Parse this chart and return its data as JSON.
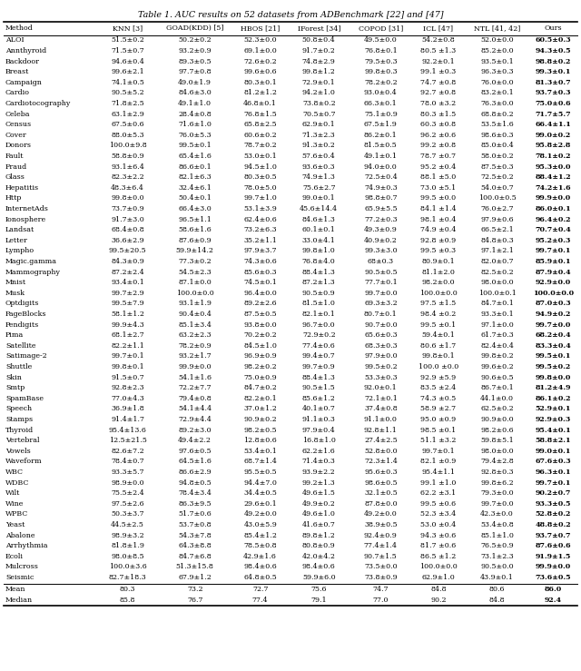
{
  "title": "Table 1. AUC results on 52 datasets from ADBenchmark [22] and [47]",
  "columns": [
    "Method",
    "KNN [3]",
    "GOAD(KDD) [5]",
    "HBOS [21]",
    "IForest [34]",
    "COPOD [31]",
    "ICL [47]",
    "NTL [41, 42]",
    "Ours"
  ],
  "rows": [
    [
      "ALOI",
      "51.5±0.2",
      "50.2±0.2",
      "52.3±0.0",
      "50.8±0.4",
      "49.5±0.0",
      "54.2±0.8",
      "52.0±0.0",
      "60.5±0.3"
    ],
    [
      "Annthyroid",
      "71.5±0.7",
      "93.2±0.9",
      "69.1±0.0",
      "91.7±0.2",
      "76.8±0.1",
      "80.5 ±1.3",
      "85.2±0.0",
      "94.3±0.5"
    ],
    [
      "Backdoor",
      "94.6±0.4",
      "89.3±0.5",
      "72.6±0.2",
      "74.8±2.9",
      "79.5±0.3",
      "92.2±0.1",
      "93.5±0.1",
      "98.8±0.2"
    ],
    [
      "Breast",
      "99.6±2.1",
      "97.7±0.8",
      "99.6±0.6",
      "99.8±1.2",
      "99.8±0.3",
      "99.1 ±0.3",
      "96.3±0.3",
      "99.3±0.1"
    ],
    [
      "Campaign",
      "74.1±0.5",
      "49.0±1.9",
      "80.3±0.1",
      "72.9±0.1",
      "78.2±0.2",
      "74.7 ±0.8",
      "76.0±0.0",
      "81.3±0.7"
    ],
    [
      "Cardio",
      "90.5±5.2",
      "84.6±3.0",
      "81.2±1.2",
      "94.2±1.0",
      "93.0±0.4",
      "92.7 ±0.8",
      "83.2±0.1",
      "93.7±0.3"
    ],
    [
      "Cardiotocography",
      "71.8±2.5",
      "49.1±1.0",
      "46.8±0.1",
      "73.8±0.2",
      "66.3±0.1",
      "78.0 ±3.2",
      "76.3±0.0",
      "75.0±0.6"
    ],
    [
      "Celeba",
      "63.1±2.9",
      "28.4±0.8",
      "76.8±1.5",
      "70.5±0.7",
      "75.1±0.9",
      "80.3 ±1.5",
      "68.8±0.2",
      "71.7±5.7"
    ],
    [
      "Census",
      "67.5±0.6",
      "71.6±1.0",
      "65.8±2.5",
      "62.9±0.1",
      "67.5±1.9",
      "60.3 ±0.8",
      "53.5±1.6",
      "66.4±1.1"
    ],
    [
      "Cover",
      "88.0±5.3",
      "76.0±5.3",
      "60.6±0.2",
      "71.3±2.3",
      "86.2±0.1",
      "96.2 ±0.6",
      "98.6±0.3",
      "99.0±0.2"
    ],
    [
      "Donors",
      "100.0±9.8",
      "99.5±0.1",
      "78.7±0.2",
      "91.3±0.2",
      "81.5±0.5",
      "99.2 ±0.8",
      "85.0±0.4",
      "95.8±2.8"
    ],
    [
      "Fault",
      "58.8±0.9",
      "65.4±1.6",
      "53.0±0.1",
      "57.6±0.4",
      "49.1±0.1",
      "78.7 ±0.7",
      "58.0±0.2",
      "78.1±0.2"
    ],
    [
      "Fraud",
      "93.1±6.4",
      "86.6±0.1",
      "94.5±1.0",
      "93.6±0.3",
      "94.0±0.0",
      "95.2 ±0.4",
      "87.5±0.3",
      "95.3±0.0"
    ],
    [
      "Glass",
      "82.3±2.2",
      "82.1±6.3",
      "80.3±0.5",
      "74.9±1.3",
      "72.5±0.4",
      "88.1 ±5.0",
      "72.5±0.2",
      "88.4±1.2"
    ],
    [
      "Hepatitis",
      "48.3±6.4",
      "32.4±6.1",
      "78.0±5.0",
      "75.6±2.7",
      "74.9±0.3",
      "73.0 ±5.1",
      "54.0±0.7",
      "74.2±1.6"
    ],
    [
      "Http",
      "99.8±0.0",
      "50.4±0.1",
      "99.7±1.0",
      "99.0±0.1",
      "98.8±0.7",
      "99.5 ±0.0",
      "100.0±0.5",
      "99.9±0.0"
    ],
    [
      "InternetAds",
      "73.7±0.9",
      "66.4±3.0",
      "53.1±3.9",
      "45.6±14.4",
      "65.9±5.5",
      "84.1 ±1.4",
      "76.0±2.7",
      "86.0±0.1"
    ],
    [
      "Ionosphere",
      "91.7±3.0",
      "96.5±1.1",
      "62.4±0.6",
      "84.6±1.3",
      "77.2±0.3",
      "98.1 ±0.4",
      "97.9±0.6",
      "96.4±0.2"
    ],
    [
      "Landsat",
      "68.4±0.8",
      "58.6±1.6",
      "73.2±6.3",
      "60.1±0.1",
      "49.3±0.9",
      "74.9 ±0.4",
      "66.5±2.1",
      "70.7±0.4"
    ],
    [
      "Letter",
      "36.6±2.9",
      "87.6±0.9",
      "35.2±1.1",
      "33.0±4.1",
      "40.9±0.2",
      "92.8 ±0.9",
      "84.8±0.3",
      "95.2±0.3"
    ],
    [
      "Lympho",
      "99.5±20.5",
      "59.9±14.2",
      "97.9±3.7",
      "99.8±1.0",
      "99.3±3.0",
      "99.5 ±0.3",
      "97.1±2.1",
      "99.7±0.1"
    ],
    [
      "Magic.gamma",
      "84.3±0.9",
      "77.3±0.2",
      "74.3±0.6",
      "76.8±4.0",
      "68±0.3",
      "80.9±0.1",
      "82.0±0.7",
      "85.9±0.1"
    ],
    [
      "Mammography",
      "87.2±2.4",
      "54.5±2.3",
      "85.6±0.3",
      "88.4±1.3",
      "90.5±0.5",
      "81.1±2.0",
      "82.5±0.2",
      "87.9±0.4"
    ],
    [
      "Mnist",
      "93.4±0.1",
      "87.1±0.0",
      "74.5±0.1",
      "87.2±1.3",
      "77.7±0.1",
      "98.2±0.0",
      "98.0±0.0",
      "92.9±0.0"
    ],
    [
      "Musk",
      "99.7±2.9",
      "100.0±0.0",
      "96.4±0.0",
      "90.5±0.9",
      "99.7±0.0",
      "100.0±0.0",
      "100.0±0.1",
      "100.0±0.0"
    ],
    [
      "Optdigits",
      "99.5±7.9",
      "93.1±1.9",
      "89.2±2.6",
      "81.5±1.0",
      "69.3±3.2",
      "97.5 ±1.5",
      "84.7±0.1",
      "87.0±0.3"
    ],
    [
      "PageBlocks",
      "58.1±1.2",
      "90.4±0.4",
      "87.5±0.5",
      "82.1±0.1",
      "80.7±0.1",
      "98.4 ±0.2",
      "93.3±0.1",
      "94.9±0.2"
    ],
    [
      "Pendigits",
      "99.9±4.3",
      "85.1±3.4",
      "93.8±0.0",
      "96.7±0.0",
      "90.7±0.0",
      "99.5 ±0.1",
      "97.1±0.0",
      "99.7±0.0"
    ],
    [
      "Pima",
      "68.1±2.7",
      "63.2±2.3",
      "70.2±0.2",
      "72.9±0.2",
      "65.6±0.3",
      "59.4±0.1",
      "61.7±0.3",
      "68.2±0.4"
    ],
    [
      "Satellite",
      "82.2±1.1",
      "78.2±0.9",
      "84.5±1.0",
      "77.4±0.6",
      "68.3±0.3",
      "80.6 ±1.7",
      "82.4±0.4",
      "83.3±0.4"
    ],
    [
      "Satimage-2",
      "99.7±0.1",
      "93.2±1.7",
      "96.9±0.9",
      "99.4±0.7",
      "97.9±0.0",
      "99.8±0.1",
      "99.8±0.2",
      "99.5±0.1"
    ],
    [
      "Shuttle",
      "99.8±0.1",
      "99.9±0.0",
      "98.2±0.2",
      "99.7±0.9",
      "99.5±0.2",
      "100.0 ±0.0",
      "99.6±0.2",
      "99.5±0.2"
    ],
    [
      "Skin",
      "91.5±0.7",
      "54.1±1.6",
      "75.0±0.9",
      "88.4±1.3",
      "53.3±0.3",
      "92.9 ±5.9",
      "90.6±0.5",
      "99.8±0.0"
    ],
    [
      "Smtp",
      "92.8±2.3",
      "72.2±7.7",
      "84.7±0.2",
      "90.5±1.5",
      "92.0±0.1",
      "83.5 ±2.4",
      "86.7±0.1",
      "81.2±4.9"
    ],
    [
      "SpamBase",
      "77.0±4.3",
      "79.4±0.8",
      "82.2±0.1",
      "85.6±1.2",
      "72.1±0.1",
      "74.3 ±0.5",
      "44.1±0.0",
      "86.1±0.2"
    ],
    [
      "Speech",
      "36.9±1.8",
      "54.1±4.4",
      "37.0±1.2",
      "40.1±0.7",
      "37.4±0.8",
      "58.9 ±2.7",
      "62.5±0.2",
      "52.9±0.1"
    ],
    [
      "Stamps",
      "91.4±1.7",
      "72.9±4.4",
      "90.9±0.2",
      "91.1±0.3",
      "91.1±0.0",
      "95.0 ±0.9",
      "90.9±0.0",
      "92.9±0.3"
    ],
    [
      "Thyroid",
      "95.4±13.6",
      "89.2±3.0",
      "98.2±0.5",
      "97.9±0.4",
      "92.8±1.1",
      "98.5 ±0.1",
      "98.2±0.6",
      "95.4±0.1"
    ],
    [
      "Vertebral",
      "12.5±21.5",
      "49.4±2.2",
      "12.8±0.6",
      "16.8±1.0",
      "27.4±2.5",
      "51.1 ±3.2",
      "59.8±5.1",
      "58.8±2.1"
    ],
    [
      "Vowels",
      "82.6±7.2",
      "97.6±0.5",
      "53.4±0.1",
      "62.2±1.6",
      "52.8±0.0",
      "99.7±0.1",
      "98.0±0.0",
      "99.0±0.1"
    ],
    [
      "Waveform",
      "78.4±0.7",
      "64.5±1.6",
      "68.7±1.4",
      "71.4±0.3",
      "72.3±1.4",
      "82.1 ±0.9",
      "79.4±2.8",
      "67.6±0.3"
    ],
    [
      "WBC",
      "93.3±5.7",
      "86.6±2.9",
      "95.5±0.5",
      "93.9±2.2",
      "95.6±0.3",
      "95.4±1.1",
      "92.8±0.3",
      "96.3±0.1"
    ],
    [
      "WDBC",
      "98.9±0.0",
      "94.8±0.5",
      "94.4±7.0",
      "99.2±1.3",
      "98.6±0.5",
      "99.1 ±1.0",
      "99.8±6.2",
      "99.7±0.1"
    ],
    [
      "Wilt",
      "75.5±2.4",
      "78.4±3.4",
      "34.4±0.5",
      "49.6±1.5",
      "32.1±0.5",
      "62.2 ±3.1",
      "79.3±0.0",
      "90.2±0.7"
    ],
    [
      "Wine",
      "97.5±2.6",
      "86.3±9.5",
      "29.6±0.1",
      "49.9±0.2",
      "87.8±0.0",
      "99.5 ±0.6",
      "99.7±0.0",
      "93.3±0.5"
    ],
    [
      "WPBC",
      "50.3±3.7",
      "51.7±0.6",
      "49.2±0.0",
      "49.6±1.0",
      "49.2±0.0",
      "52.3 ±3.4",
      "42.3±0.0",
      "52.8±0.2"
    ],
    [
      "Yeast",
      "44.5±2.5",
      "53.7±0.8",
      "43.0±5.9",
      "41.6±0.7",
      "38.9±0.5",
      "53.0 ±0.4",
      "53.4±0.8",
      "48.8±0.2"
    ],
    [
      "Abalone",
      "98.9±3.2",
      "54.3±7.8",
      "85.4±1.2",
      "89.8±1.2",
      "92.4±0.9",
      "94.3 ±0.6",
      "85.1±1.0",
      "93.7±0.7"
    ],
    [
      "Arrhythmia",
      "81.8±1.9",
      "64.3±8.8",
      "78.5±0.8",
      "80.8±0.9",
      "77.4±1.4",
      "81.7 ±0.6",
      "76.5±0.9",
      "87.6±0.6"
    ],
    [
      "Ecoli",
      "98.0±8.5",
      "84.7±6.8",
      "42.9±1.6",
      "42.0±4.2",
      "90.7±1.5",
      "86.5 ±1.2",
      "73.1±2.3",
      "91.9±1.5"
    ],
    [
      "Mulcross",
      "100.0±3.6",
      "51.3±15.8",
      "98.4±0.6",
      "98.4±0.6",
      "73.5±0.0",
      "100.0±0.0",
      "90.5±0.0",
      "99.9±0.0"
    ],
    [
      "Seismic",
      "82.7±18.3",
      "67.9±1.2",
      "64.8±0.5",
      "59.9±6.0",
      "73.8±0.9",
      "62.9±1.0",
      "43.9±0.1",
      "73.6±0.5"
    ]
  ],
  "summary_rows": [
    [
      "Mean",
      "80.3",
      "73.2",
      "72.7",
      "75.6",
      "74.7",
      "84.8",
      "80.6",
      "86.0"
    ],
    [
      "Median",
      "85.8",
      "76.7",
      "77.4",
      "79.1",
      "77.0",
      "90.2",
      "84.8",
      "92.4"
    ]
  ]
}
